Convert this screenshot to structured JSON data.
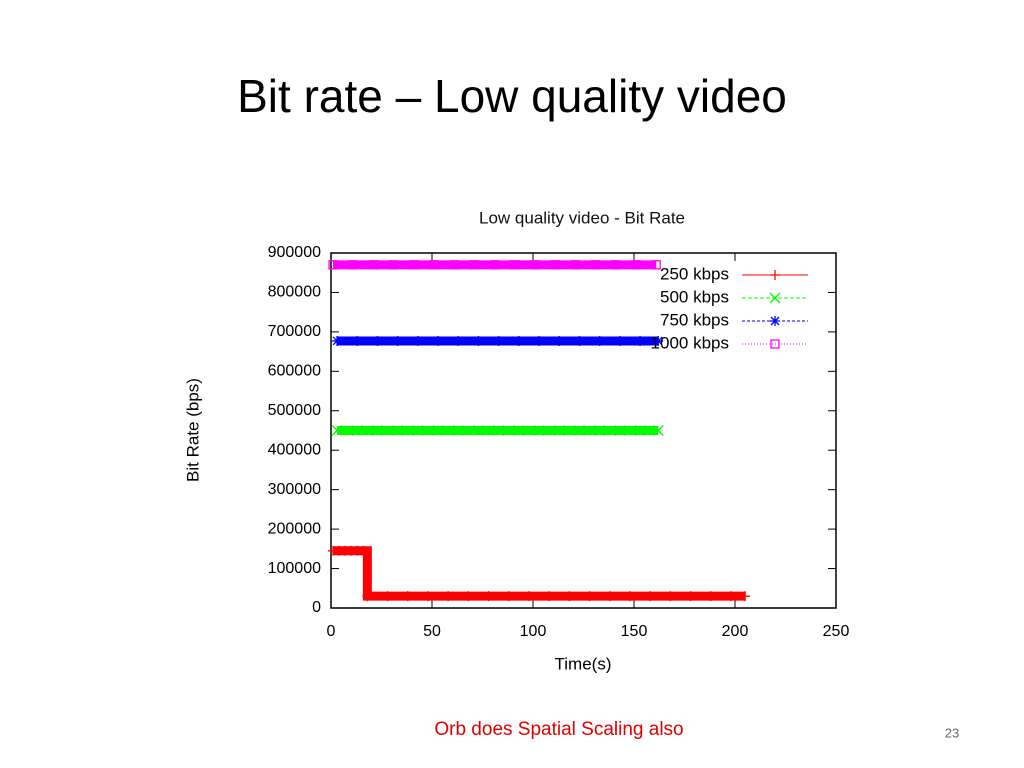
{
  "slide_title": "Bit rate – Low quality video",
  "note": "Orb does Spatial Scaling also",
  "page_number": "23",
  "chart_data": {
    "type": "line",
    "title": "Low quality video - Bit Rate",
    "x_label": "Time(s)",
    "y_label": "Bit Rate (bps)",
    "xlim": [
      0,
      250
    ],
    "xticks": [
      0,
      50,
      100,
      150,
      200,
      250
    ],
    "ylim": [
      0,
      900000
    ],
    "yticks": [
      0,
      100000,
      200000,
      300000,
      400000,
      500000,
      600000,
      700000,
      800000,
      900000
    ],
    "legend": "upper right",
    "series": [
      {
        "name": "250 kbps",
        "color": "#ff0000",
        "marker": "plus",
        "dash": "none",
        "x": [
          1,
          4,
          7,
          10,
          13,
          16,
          18,
          28,
          38,
          48,
          58,
          68,
          78,
          88,
          98,
          108,
          118,
          128,
          138,
          148,
          158,
          168,
          178,
          188,
          198,
          205
        ],
        "values": [
          145000,
          145000,
          145000,
          145000,
          145000,
          145000,
          30000,
          30000,
          30000,
          30000,
          30000,
          30000,
          30000,
          30000,
          30000,
          30000,
          30000,
          30000,
          30000,
          30000,
          30000,
          30000,
          30000,
          30000,
          30000,
          30000
        ]
      },
      {
        "name": "500 kbps",
        "color": "#00ff00",
        "marker": "cross",
        "dash": "4 2",
        "x": [
          3,
          13,
          23,
          33,
          43,
          53,
          63,
          73,
          83,
          93,
          103,
          113,
          123,
          133,
          143,
          153,
          162
        ],
        "values": [
          450000,
          450000,
          450000,
          450000,
          450000,
          450000,
          450000,
          450000,
          450000,
          450000,
          450000,
          450000,
          450000,
          450000,
          450000,
          450000,
          450000
        ]
      },
      {
        "name": "750 kbps",
        "color": "#0000ff",
        "marker": "star",
        "dash": "3 2",
        "x": [
          3,
          13,
          23,
          33,
          43,
          53,
          63,
          73,
          83,
          93,
          103,
          113,
          123,
          133,
          143,
          153,
          162
        ],
        "values": [
          677000,
          677000,
          677000,
          677000,
          677000,
          677000,
          677000,
          677000,
          677000,
          677000,
          677000,
          677000,
          677000,
          677000,
          677000,
          677000,
          677000
        ]
      },
      {
        "name": "1000 kbps",
        "color": "#ff00ff",
        "marker": "square",
        "dash": "1 2",
        "x": [
          1,
          11,
          21,
          31,
          41,
          51,
          61,
          71,
          81,
          91,
          101,
          111,
          121,
          131,
          141,
          151,
          161
        ],
        "values": [
          870000,
          870000,
          870000,
          870000,
          870000,
          870000,
          870000,
          870000,
          870000,
          870000,
          870000,
          870000,
          870000,
          870000,
          870000,
          870000,
          870000
        ]
      }
    ]
  }
}
